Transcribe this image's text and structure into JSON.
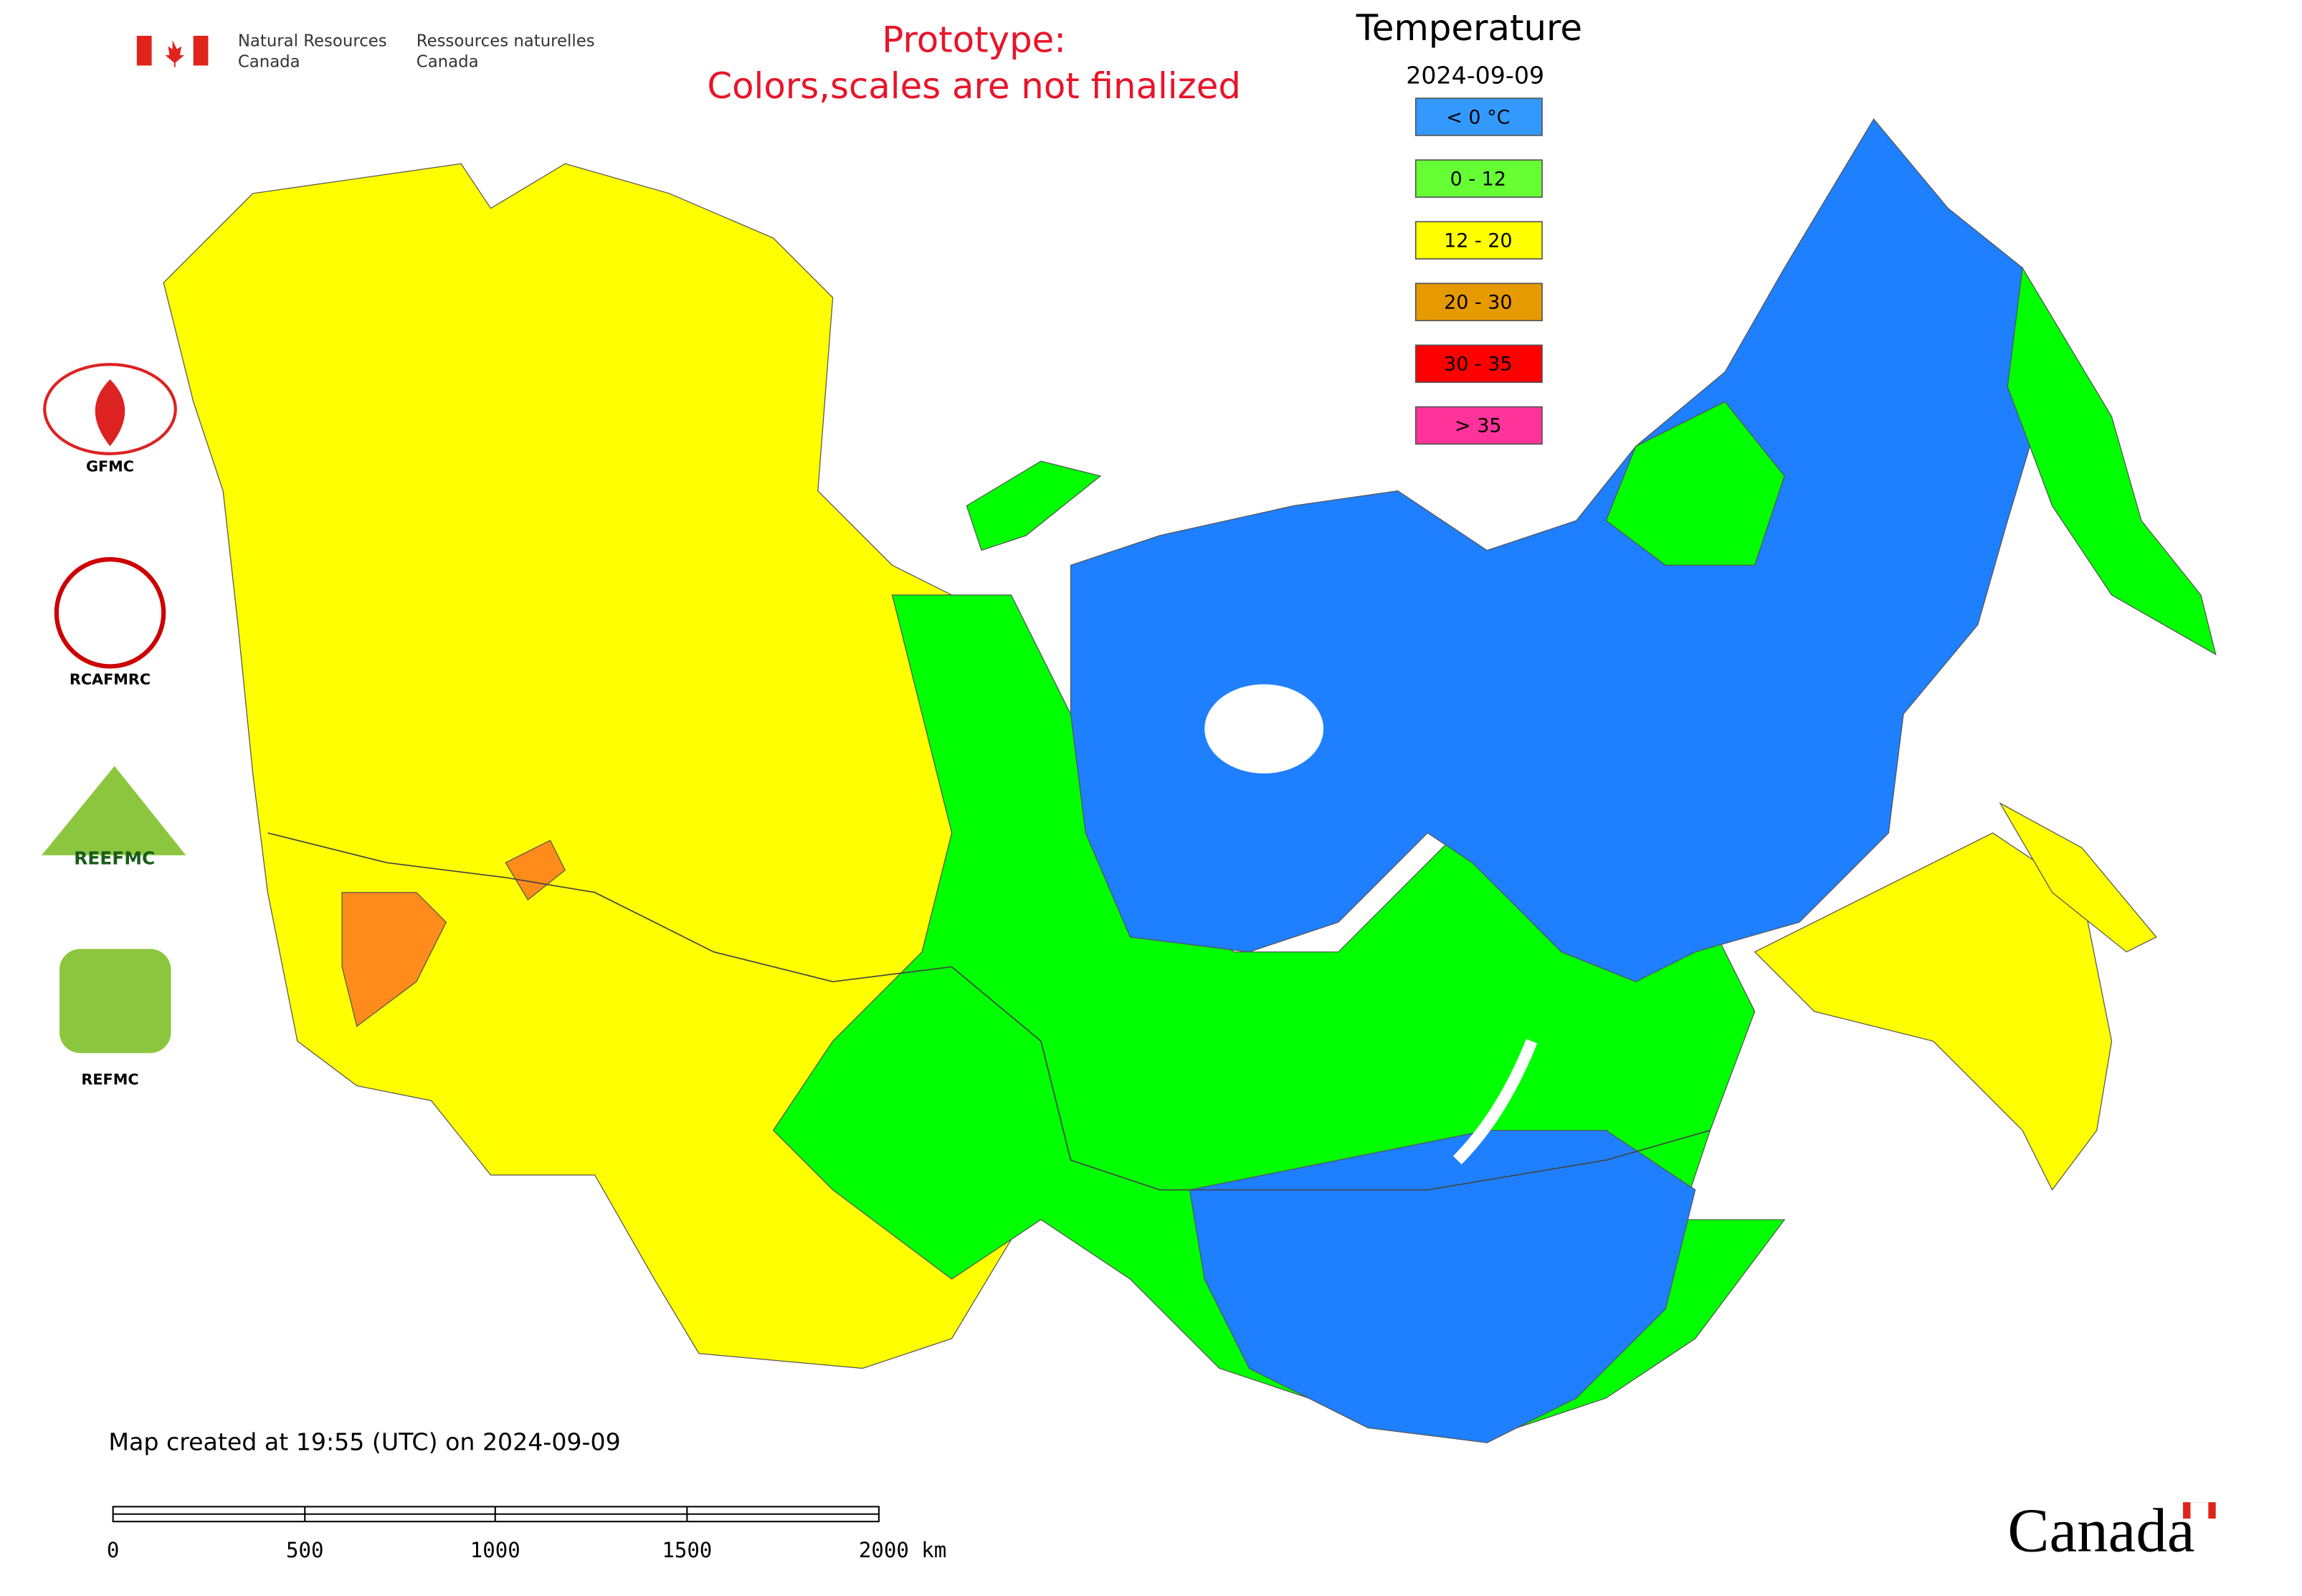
{
  "header": {
    "agency_en": [
      "Natural Resources",
      "Canada"
    ],
    "agency_fr": [
      "Ressources naturelles",
      "Canada"
    ],
    "notice": [
      "Prototype:",
      "Colors,scales are not finalized"
    ]
  },
  "legend": {
    "title": "Temperature",
    "date": "2024-09-09",
    "items": [
      {
        "label": "< 0 °C",
        "color": "#3399ff"
      },
      {
        "label": "0 - 12",
        "color": "#66ff33"
      },
      {
        "label": "12 - 20",
        "color": "#ffff00"
      },
      {
        "label": "20 - 30",
        "color": "#e69a00"
      },
      {
        "label": "30 - 35",
        "color": "#ff0000"
      },
      {
        "label": "> 35",
        "color": "#ff3399"
      }
    ]
  },
  "logos": [
    "GFMC",
    "RCAFMRC",
    "REEFMC",
    "REFMC"
  ],
  "map_note": "Map created at 19:55 (UTC) on 2024-09-09",
  "scale_bar": [
    "0",
    "500",
    "1000",
    "1500",
    "2000 km"
  ],
  "wordmark": "Canada"
}
